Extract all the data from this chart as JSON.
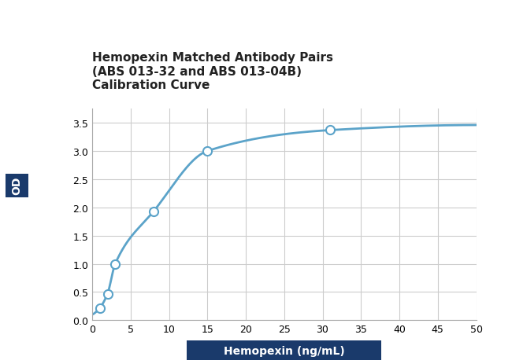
{
  "title_line1": "Hemopexin Matched Antibody Pairs",
  "title_line2": "(ABS 013-32 and ABS 013-04B)",
  "title_line3": "Calibration Curve",
  "ylabel": "OD",
  "xlabel": "Hemopexin (ng/mL)",
  "data_x": [
    1,
    2,
    3,
    8,
    15,
    31
  ],
  "data_y": [
    0.22,
    0.47,
    1.0,
    1.93,
    3.0,
    3.37
  ],
  "xlim": [
    0,
    50
  ],
  "ylim": [
    0.0,
    3.75
  ],
  "xticks": [
    0,
    5,
    10,
    15,
    20,
    25,
    30,
    35,
    40,
    45,
    50
  ],
  "yticks": [
    0.0,
    0.5,
    1.0,
    1.5,
    2.0,
    2.5,
    3.0,
    3.5
  ],
  "line_color": "#5ba3c9",
  "marker_color": "#5ba3c9",
  "grid_color": "#cccccc",
  "background_color": "#ffffff",
  "xlabel_box_color": "#1a3a6b",
  "xlabel_text_color": "#ffffff",
  "ylabel_box_color": "#1a3a6b",
  "ylabel_text_color": "#ffffff",
  "title_fontsize": 11,
  "axis_fontsize": 9,
  "marker_size": 8
}
